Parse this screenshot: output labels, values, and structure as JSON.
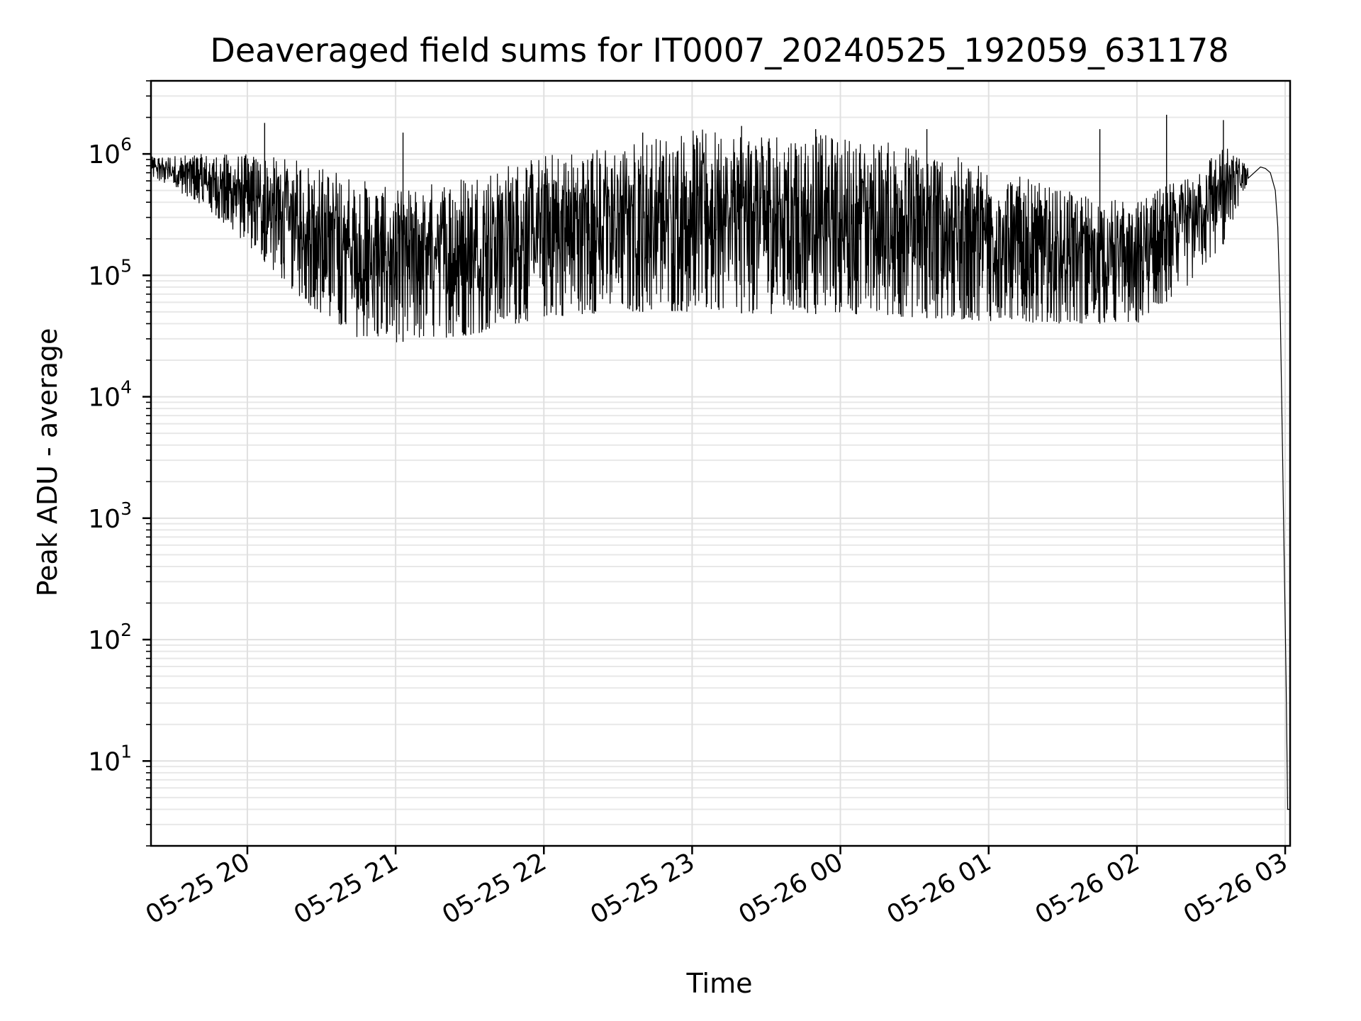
{
  "chart_data": {
    "type": "line",
    "title": "Deaveraged field sums for IT0007_20240525_192059_631178",
    "xlabel": "Time",
    "ylabel": "Peak ADU - average",
    "yscale": "log",
    "ylim": [
      2,
      4000000
    ],
    "xlim": [
      "2024-05-25T19:21:00",
      "2024-05-26T03:02:00"
    ],
    "grid": true,
    "x_ticks": [
      "2024-05-25T20:00",
      "2024-05-25T21:00",
      "2024-05-25T22:00",
      "2024-05-25T23:00",
      "2024-05-26T00:00",
      "2024-05-26T01:00",
      "2024-05-26T02:00",
      "2024-05-26T03:00"
    ],
    "x_tick_labels": [
      "05-25 20",
      "05-25 21",
      "05-25 22",
      "05-25 23",
      "05-26 00",
      "05-26 01",
      "05-26 02",
      "05-26 03"
    ],
    "y_ticks": [
      {
        "value": 10,
        "base": "10",
        "exp": "1"
      },
      {
        "value": 100,
        "base": "10",
        "exp": "2"
      },
      {
        "value": 1000,
        "base": "10",
        "exp": "3"
      },
      {
        "value": 10000,
        "base": "10",
        "exp": "4"
      },
      {
        "value": 100000,
        "base": "10",
        "exp": "5"
      },
      {
        "value": 1000000,
        "base": "10",
        "exp": "6"
      }
    ],
    "line_color": "#000000",
    "series": [
      {
        "x": [
          "2024-05-25T19:21:00",
          "2024-05-25T19:30:00",
          "2024-05-25T19:37:00",
          "2024-05-25T19:42:00",
          "2024-05-25T19:48:00",
          "2024-05-25T19:55:00",
          "2024-05-25T20:00:00",
          "2024-05-25T20:06:00",
          "2024-05-25T20:12:00",
          "2024-05-25T20:20:00",
          "2024-05-25T20:30:00",
          "2024-05-25T20:40:00",
          "2024-05-25T20:50:00",
          "2024-05-25T21:00:00",
          "2024-05-25T21:10:00",
          "2024-05-25T21:20:00",
          "2024-05-25T21:30:00",
          "2024-05-25T21:45:00",
          "2024-05-25T22:00:00",
          "2024-05-25T22:30:00",
          "2024-05-25T23:00:00",
          "2024-05-25T23:30:00",
          "2024-05-26T00:00:00",
          "2024-05-26T00:30:00",
          "2024-05-26T01:00:00",
          "2024-05-26T01:30:00",
          "2024-05-26T02:00:00",
          "2024-05-26T02:10:00",
          "2024-05-26T02:20:00",
          "2024-05-26T02:30:00",
          "2024-05-26T02:35:00",
          "2024-05-26T02:40:00",
          "2024-05-26T02:45:00",
          "2024-05-26T02:50:00",
          "2024-05-26T02:52:00",
          "2024-05-26T02:54:00",
          "2024-05-26T02:56:00",
          "2024-05-26T02:57:00",
          "2024-05-26T02:58:00",
          "2024-05-26T02:59:00",
          "2024-05-26T02:59:30",
          "2024-05-26T03:00:00",
          "2024-05-26T03:00:30",
          "2024-05-26T03:01:00",
          "2024-05-26T03:02:00"
        ],
        "y": [
          800000,
          780000,
          750000,
          560000,
          380000,
          280000,
          220000,
          140000,
          80000,
          60000,
          48000,
          38000,
          34000,
          33000,
          36000,
          40000,
          45000,
          55000,
          65000,
          75000,
          85000,
          85000,
          85000,
          80000,
          65000,
          58000,
          58000,
          100000,
          160000,
          230000,
          300000,
          420000,
          650000,
          780000,
          760000,
          700000,
          500000,
          250000,
          50000,
          3000,
          600,
          150,
          30,
          4,
          4
        ]
      }
    ],
    "noise_envelope": {
      "description": "dense spiky fluctuation between lower and upper envelopes",
      "x": [
        "2024-05-25T19:21:00",
        "2024-05-25T19:40:00",
        "2024-05-25T20:00:00",
        "2024-05-25T20:20:00",
        "2024-05-25T20:40:00",
        "2024-05-25T21:00:00",
        "2024-05-25T21:30:00",
        "2024-05-25T22:00:00",
        "2024-05-25T22:30:00",
        "2024-05-25T23:00:00",
        "2024-05-25T23:30:00",
        "2024-05-26T00:00:00",
        "2024-05-26T00:30:00",
        "2024-05-26T01:00:00",
        "2024-05-26T01:30:00",
        "2024-05-26T02:00:00",
        "2024-05-26T02:20:00",
        "2024-05-26T02:35:00",
        "2024-05-26T02:45:00"
      ],
      "lower": [
        650000,
        400000,
        180000,
        70000,
        32000,
        28000,
        32000,
        45000,
        50000,
        50000,
        48000,
        48000,
        45000,
        42000,
        40000,
        40000,
        80000,
        180000,
        600000
      ],
      "upper": [
        950000,
        1000000,
        1000000,
        900000,
        700000,
        500000,
        700000,
        1000000,
        1200000,
        1600000,
        1600000,
        1400000,
        1200000,
        800000,
        500000,
        400000,
        700000,
        1200000,
        800000
      ],
      "spikes": [
        {
          "x": "2024-05-25T20:07:00",
          "y": 1800000
        },
        {
          "x": "2024-05-25T21:03:00",
          "y": 1500000
        },
        {
          "x": "2024-05-25T22:40:00",
          "y": 1500000
        },
        {
          "x": "2024-05-25T23:20:00",
          "y": 1700000
        },
        {
          "x": "2024-05-25T23:50:00",
          "y": 1600000
        },
        {
          "x": "2024-05-26T00:35:00",
          "y": 1600000
        },
        {
          "x": "2024-05-26T01:45:00",
          "y": 1600000
        },
        {
          "x": "2024-05-26T02:12:00",
          "y": 2100000
        },
        {
          "x": "2024-05-26T02:35:00",
          "y": 1900000
        }
      ]
    }
  }
}
